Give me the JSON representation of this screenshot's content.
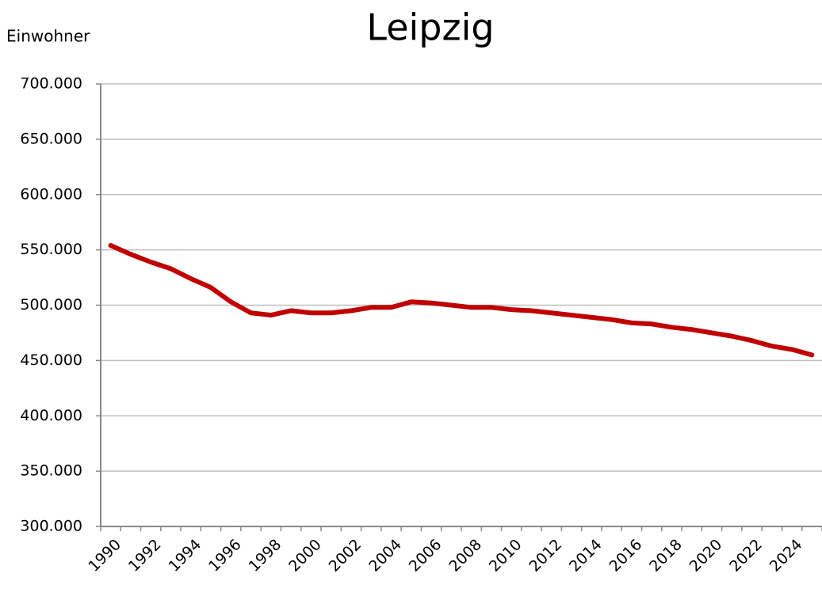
{
  "chart_data": {
    "type": "line",
    "title": "Leipzig",
    "y_label": "Einwohner",
    "categories": [
      "1990",
      null,
      "1992",
      null,
      "1994",
      null,
      "1996",
      null,
      "1998",
      null,
      "2000",
      null,
      "2002",
      null,
      "2004",
      null,
      "2006",
      null,
      "2008",
      null,
      "2010",
      null,
      "2012",
      null,
      "2014",
      null,
      "2016",
      null,
      "2018",
      null,
      "2020",
      null,
      "2022",
      null,
      "2024",
      null
    ],
    "values": [
      554000,
      546000,
      539000,
      533000,
      524000,
      516000,
      503000,
      493000,
      491000,
      495000,
      493000,
      493000,
      495000,
      498000,
      498000,
      503000,
      502000,
      500000,
      498000,
      498000,
      496000,
      495000,
      493000,
      491000,
      489000,
      487000,
      484000,
      483000,
      480000,
      478000,
      475000,
      472000,
      468000,
      463000,
      460000,
      455000
    ],
    "color": "#c00000",
    "ylim": [
      300000,
      700000
    ],
    "yticks": [
      {
        "value": 300000,
        "label": "300.000"
      },
      {
        "value": 350000,
        "label": "350.000"
      },
      {
        "value": 400000,
        "label": "400.000"
      },
      {
        "value": 450000,
        "label": "450.000"
      },
      {
        "value": 500000,
        "label": "500.000"
      },
      {
        "value": 550000,
        "label": "550.000"
      },
      {
        "value": 600000,
        "label": "600.000"
      },
      {
        "value": 650000,
        "label": "650.000"
      },
      {
        "value": 700000,
        "label": "700.000"
      }
    ],
    "grid": true
  }
}
